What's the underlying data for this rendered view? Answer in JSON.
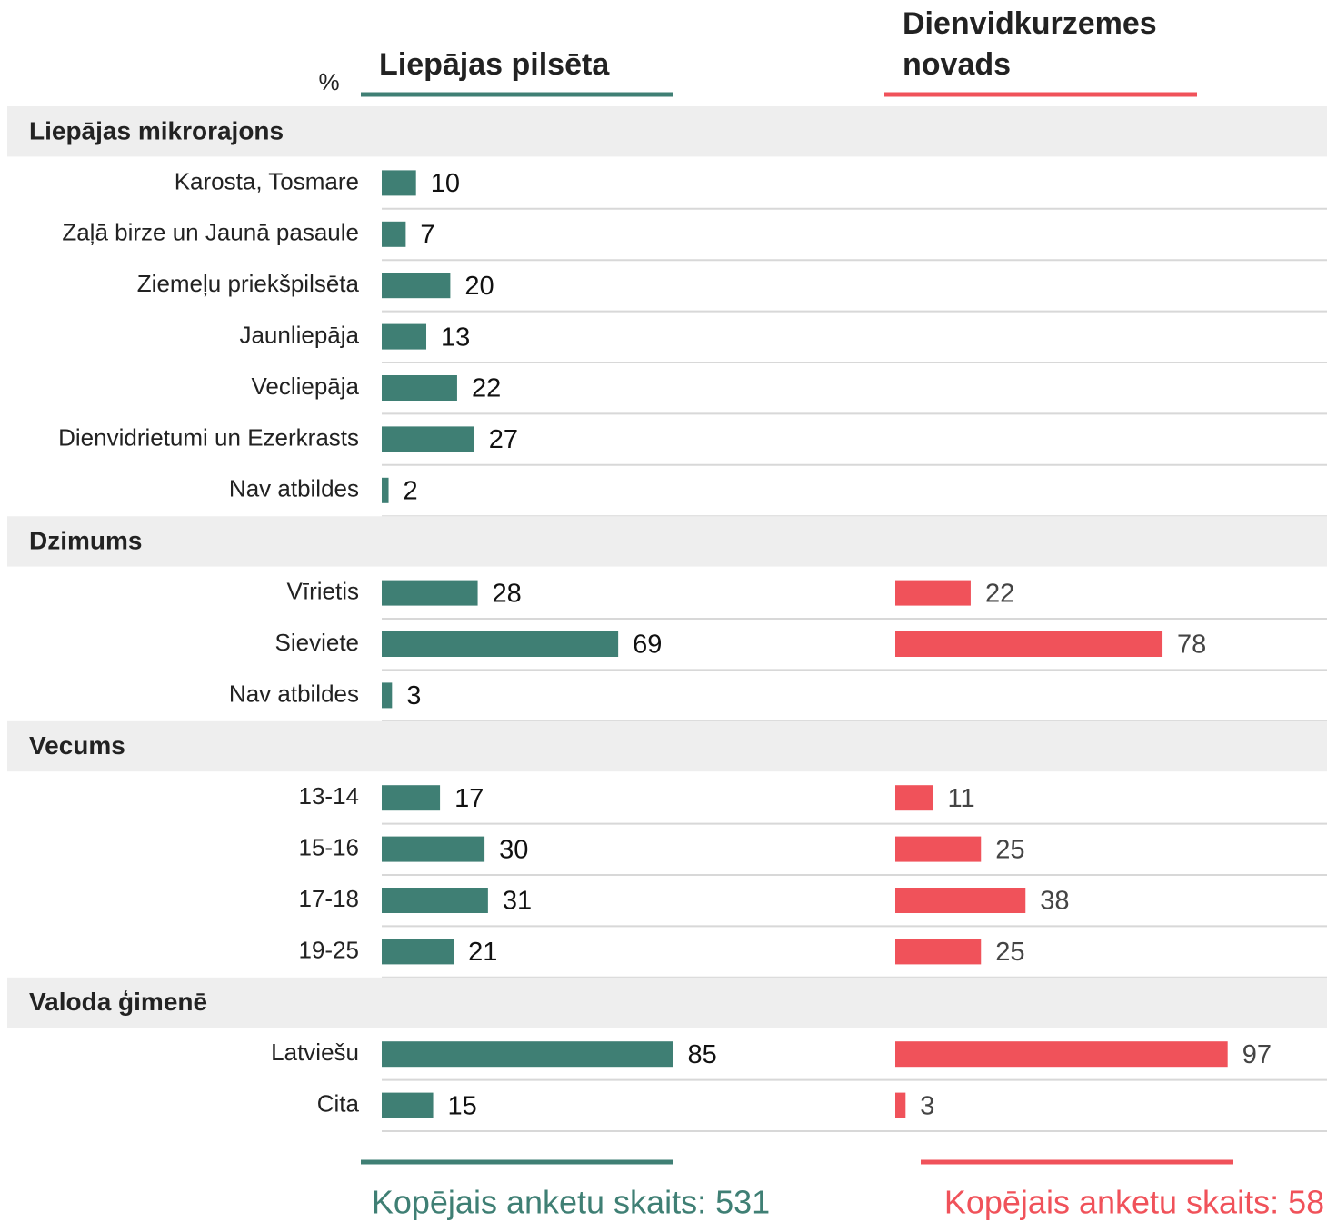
{
  "chart_data": {
    "type": "bar",
    "unit": "%",
    "xlim": [
      0,
      100
    ],
    "groups": [
      {
        "name": "Liepājas mikrorajons",
        "categories": [
          "Karosta, Tosmare",
          "Zaļā birze un Jaunā pasaule",
          "Ziemeļu priekšpilsēta",
          "Jaunliepāja",
          "Vecliepāja",
          "Dienvidrietumi un Ezerkrasts",
          "Nav atbildes"
        ]
      },
      {
        "name": "Dzimums",
        "categories": [
          "Vīrietis",
          "Sieviete",
          "Nav atbildes"
        ]
      },
      {
        "name": "Vecums",
        "categories": [
          "13-14",
          "15-16",
          "17-18",
          "19-25"
        ]
      },
      {
        "name": "Valoda ģimenē",
        "categories": [
          "Latviešu",
          "Cita"
        ]
      }
    ],
    "series": [
      {
        "name": "Liepājas pilsēta",
        "color": "#3f7f74",
        "footer": "Kopējais anketu skaits: 531",
        "values": [
          [
            10,
            7,
            20,
            13,
            22,
            27,
            2
          ],
          [
            28,
            69,
            3
          ],
          [
            17,
            30,
            31,
            21
          ],
          [
            85,
            15
          ]
        ]
      },
      {
        "name": "Dienvidkurzemes novads",
        "color": "#f0525a",
        "footer": "Kopējais anketu skaits: 58",
        "values": [
          [
            null,
            null,
            null,
            null,
            null,
            null,
            null
          ],
          [
            22,
            78,
            null
          ],
          [
            11,
            25,
            38,
            25
          ],
          [
            97,
            3
          ]
        ]
      }
    ]
  }
}
